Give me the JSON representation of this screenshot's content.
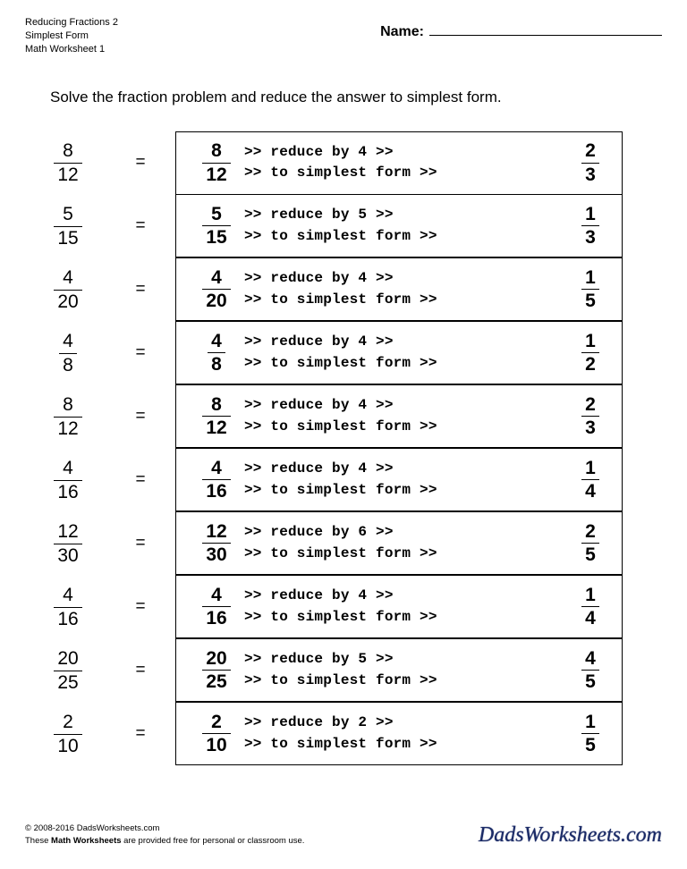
{
  "header": {
    "line1": "Reducing Fractions 2",
    "line2": "Simplest Form",
    "line3": "Math Worksheet 1",
    "name_label": "Name:"
  },
  "instructions": "Solve the fraction problem and reduce the answer to simplest form.",
  "equals": "=",
  "problems": [
    {
      "num": "8",
      "den": "12",
      "reduce_by": "4",
      "ans_num": "2",
      "ans_den": "3"
    },
    {
      "num": "5",
      "den": "15",
      "reduce_by": "5",
      "ans_num": "1",
      "ans_den": "3"
    },
    {
      "num": "4",
      "den": "20",
      "reduce_by": "4",
      "ans_num": "1",
      "ans_den": "5"
    },
    {
      "num": "4",
      "den": "8",
      "reduce_by": "4",
      "ans_num": "1",
      "ans_den": "2"
    },
    {
      "num": "8",
      "den": "12",
      "reduce_by": "4",
      "ans_num": "2",
      "ans_den": "3"
    },
    {
      "num": "4",
      "den": "16",
      "reduce_by": "4",
      "ans_num": "1",
      "ans_den": "4"
    },
    {
      "num": "12",
      "den": "30",
      "reduce_by": "6",
      "ans_num": "2",
      "ans_den": "5"
    },
    {
      "num": "4",
      "den": "16",
      "reduce_by": "4",
      "ans_num": "1",
      "ans_den": "4"
    },
    {
      "num": "20",
      "den": "25",
      "reduce_by": "5",
      "ans_num": "4",
      "ans_den": "5"
    },
    {
      "num": "2",
      "den": "10",
      "reduce_by": "2",
      "ans_num": "1",
      "ans_den": "5"
    }
  ],
  "solution_text": {
    "reduce_prefix": ">> reduce by ",
    "reduce_suffix": " >>",
    "simplest": ">> to simplest form >>"
  },
  "footer": {
    "copyright": "© 2008-2016 DadsWorksheets.com",
    "line2a": "These ",
    "line2b": "Math Worksheets",
    "line2c": " are provided free for personal or classroom use.",
    "logo": "DadsWorksheets.com"
  },
  "colors": {
    "text": "#000000",
    "background": "#ffffff",
    "border": "#000000",
    "logo": "#1a2a66"
  }
}
